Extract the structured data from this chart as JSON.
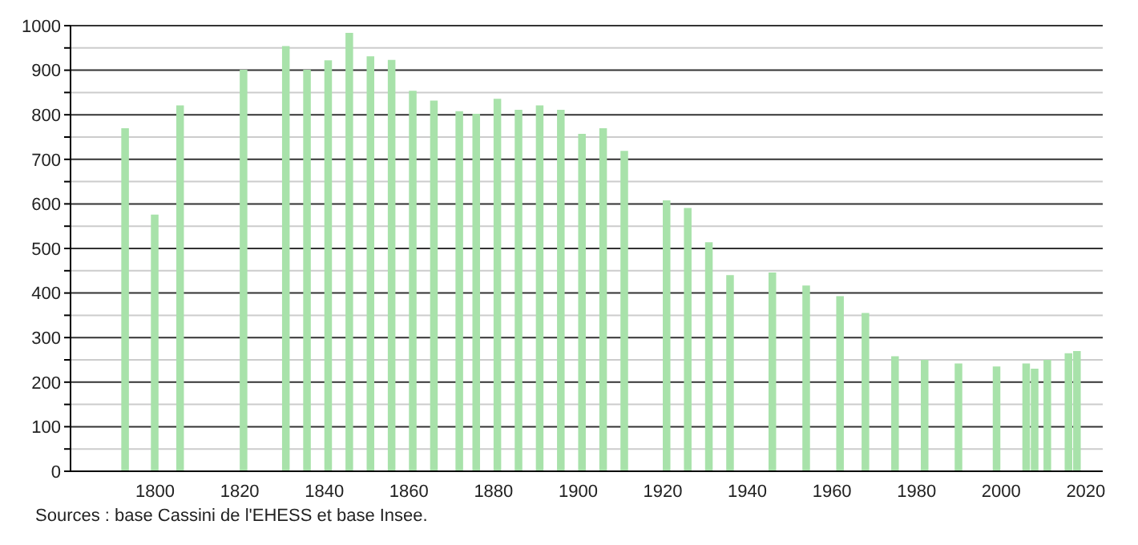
{
  "chart_data": {
    "type": "bar",
    "color": "#a8e2aa",
    "x": [
      1793,
      1800,
      1806,
      1821,
      1831,
      1836,
      1841,
      1846,
      1851,
      1856,
      1861,
      1866,
      1872,
      1876,
      1881,
      1886,
      1891,
      1896,
      1901,
      1906,
      1911,
      1921,
      1926,
      1931,
      1936,
      1946,
      1954,
      1962,
      1968,
      1975,
      1982,
      1990,
      1999,
      2006,
      2008,
      2011,
      2016,
      2018
    ],
    "values": [
      770,
      576,
      821,
      901,
      954,
      901,
      922,
      984,
      931,
      923,
      854,
      832,
      808,
      802,
      836,
      811,
      821,
      811,
      757,
      770,
      719,
      608,
      591,
      514,
      440,
      446,
      417,
      393,
      355,
      258,
      250,
      242,
      235,
      242,
      230,
      250,
      265,
      270
    ],
    "xlim": [
      1780,
      2024
    ],
    "xticks": [
      1800,
      1820,
      1840,
      1860,
      1880,
      1900,
      1920,
      1940,
      1960,
      1980,
      2000,
      2020
    ],
    "ylim": [
      0,
      1000
    ],
    "yticks": [
      0,
      {
        "value": 50,
        "label": null
      },
      100,
      {
        "value": 150,
        "label": null
      },
      200,
      {
        "value": 250,
        "label": null
      },
      300,
      {
        "value": 350,
        "label": null
      },
      400,
      {
        "value": 450,
        "label": null
      },
      500,
      {
        "value": 550,
        "label": null
      },
      600,
      {
        "value": 650,
        "label": null
      },
      700,
      {
        "value": 750,
        "label": null
      },
      800,
      {
        "value": 850,
        "label": null
      },
      900,
      {
        "value": 950,
        "label": null
      },
      1000
    ],
    "grid": "y",
    "annotations": [
      "Sources : base Cassini de l'EHESS et base Insee."
    ]
  }
}
